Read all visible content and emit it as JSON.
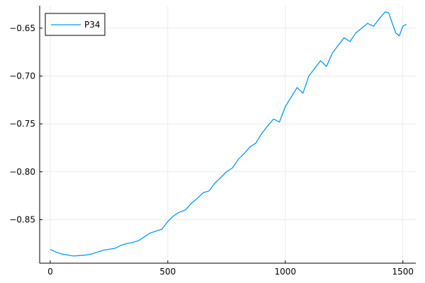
{
  "chart_data": {
    "type": "line",
    "title": "",
    "xlabel": "",
    "ylabel": "",
    "xlim": [
      -45,
      1555
    ],
    "ylim": [
      -0.8955,
      -0.6265
    ],
    "x_ticks": [
      0,
      500,
      1000,
      1500
    ],
    "x_tick_labels": [
      "0",
      "500",
      "1000",
      "1500"
    ],
    "y_ticks": [
      -0.85,
      -0.8,
      -0.75,
      -0.7,
      -0.65
    ],
    "y_tick_labels": [
      "−0.85",
      "−0.80",
      "−0.75",
      "−0.70",
      "−0.65"
    ],
    "grid": true,
    "legend": {
      "placement": "top-left",
      "entries": [
        "P34"
      ]
    },
    "series": [
      {
        "name": "P34",
        "color": "#009af9",
        "x": [
          0,
          25,
          50,
          75,
          100,
          125,
          150,
          175,
          200,
          225,
          250,
          275,
          300,
          325,
          350,
          375,
          400,
          425,
          450,
          475,
          500,
          525,
          550,
          575,
          600,
          625,
          650,
          675,
          700,
          725,
          750,
          775,
          800,
          825,
          850,
          875,
          900,
          925,
          950,
          975,
          1000,
          1025,
          1050,
          1075,
          1100,
          1125,
          1150,
          1175,
          1200,
          1225,
          1250,
          1275,
          1300,
          1325,
          1350,
          1375,
          1400,
          1425,
          1440,
          1455,
          1470,
          1485,
          1500,
          1515
        ],
        "y": [
          -0.881,
          -0.884,
          -0.886,
          -0.887,
          -0.888,
          -0.8875,
          -0.887,
          -0.886,
          -0.884,
          -0.882,
          -0.881,
          -0.88,
          -0.877,
          -0.875,
          -0.874,
          -0.872,
          -0.868,
          -0.864,
          -0.862,
          -0.86,
          -0.852,
          -0.846,
          -0.842,
          -0.84,
          -0.833,
          -0.828,
          -0.822,
          -0.82,
          -0.812,
          -0.806,
          -0.8,
          -0.796,
          -0.787,
          -0.781,
          -0.774,
          -0.77,
          -0.76,
          -0.752,
          -0.745,
          -0.748,
          -0.732,
          -0.722,
          -0.712,
          -0.718,
          -0.7,
          -0.692,
          -0.684,
          -0.69,
          -0.676,
          -0.668,
          -0.66,
          -0.664,
          -0.655,
          -0.65,
          -0.645,
          -0.648,
          -0.64,
          -0.633,
          -0.634,
          -0.645,
          -0.655,
          -0.658,
          -0.648,
          -0.646
        ]
      }
    ]
  }
}
